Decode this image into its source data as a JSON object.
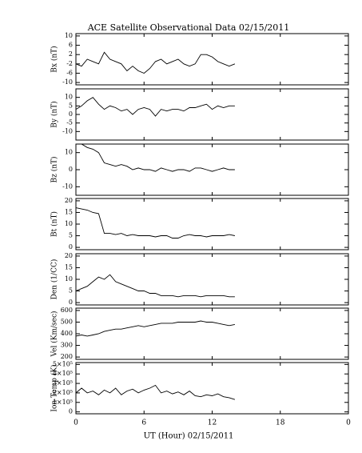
{
  "chart_data": [
    {
      "type": "line",
      "title": "ACE Satellite Observational Data   02/15/2011",
      "ylabel": "Bx (nT)",
      "x": [
        0,
        0.5,
        1,
        1.5,
        2,
        2.5,
        3,
        3.5,
        4,
        4.5,
        5,
        5.5,
        6,
        6.5,
        7,
        7.5,
        8,
        8.5,
        9,
        9.5,
        10,
        10.5,
        11,
        11.5,
        12,
        12.5,
        13,
        13.5,
        14
      ],
      "values": [
        -2,
        -3,
        0,
        -1,
        -2,
        3,
        0,
        -1,
        -2,
        -5,
        -3,
        -5,
        -6,
        -4,
        -1,
        0,
        -2,
        -1,
        0,
        -2,
        -3,
        -2,
        2,
        2,
        1,
        -1,
        -2,
        -3,
        -2
      ],
      "ylim": [
        -11,
        11
      ],
      "yticks": [
        -10,
        -6,
        -2,
        2,
        6,
        10
      ],
      "xlim": [
        0,
        24
      ],
      "color": "#000000"
    },
    {
      "type": "line",
      "ylabel": "By (nT)",
      "x": [
        0,
        0.5,
        1,
        1.5,
        2,
        2.5,
        3,
        3.5,
        4,
        4.5,
        5,
        5.5,
        6,
        6.5,
        7,
        7.5,
        8,
        8.5,
        9,
        9.5,
        10,
        10.5,
        11,
        11.5,
        12,
        12.5,
        13,
        13.5,
        14
      ],
      "values": [
        3,
        5,
        8,
        10,
        6,
        3,
        5,
        4,
        2,
        3,
        0,
        3,
        4,
        3,
        -1,
        3,
        2,
        3,
        3,
        2,
        4,
        4,
        5,
        6,
        3,
        5,
        4,
        5,
        5
      ],
      "ylim": [
        -15,
        15
      ],
      "yticks": [
        -10,
        -5,
        0,
        5,
        10
      ],
      "xlim": [
        0,
        24
      ],
      "color": "#000000"
    },
    {
      "type": "line",
      "ylabel": "Bz (nT)",
      "x": [
        0,
        0.5,
        1,
        1.5,
        2,
        2.5,
        3,
        3.5,
        4,
        4.5,
        5,
        5.5,
        6,
        6.5,
        7,
        7.5,
        8,
        8.5,
        9,
        9.5,
        10,
        10.5,
        11,
        11.5,
        12,
        12.5,
        13,
        13.5,
        14
      ],
      "values": [
        15,
        15,
        13,
        12,
        10,
        4,
        3,
        2,
        3,
        2,
        0,
        1,
        0,
        0,
        -1,
        1,
        0,
        -1,
        0,
        0,
        -1,
        1,
        1,
        0,
        -1,
        0,
        1,
        0,
        0
      ],
      "ylim": [
        -15,
        15
      ],
      "yticks": [
        -10,
        0,
        10
      ],
      "xlim": [
        0,
        24
      ],
      "color": "#000000"
    },
    {
      "type": "line",
      "ylabel": "Bt (nT)",
      "x": [
        0,
        0.5,
        1,
        1.5,
        2,
        2.5,
        3,
        3.5,
        4,
        4.5,
        5,
        5.5,
        6,
        6.5,
        7,
        7.5,
        8,
        8.5,
        9,
        9.5,
        10,
        10.5,
        11,
        11.5,
        12,
        12.5,
        13,
        13.5,
        14
      ],
      "values": [
        17,
        16.5,
        16,
        15,
        14.5,
        6,
        6,
        5.5,
        6,
        5,
        5.5,
        5,
        5,
        5,
        4.5,
        5,
        5,
        4,
        4,
        5,
        5.5,
        5,
        5,
        4.5,
        5,
        5,
        5,
        5.5,
        5
      ],
      "ylim": [
        -1,
        21
      ],
      "yticks": [
        0,
        5,
        10,
        15,
        20
      ],
      "xlim": [
        0,
        24
      ],
      "color": "#000000"
    },
    {
      "type": "line",
      "ylabel": "Den (1/CC)",
      "x": [
        0,
        0.5,
        1,
        1.5,
        2,
        2.5,
        3,
        3.5,
        4,
        4.5,
        5,
        5.5,
        6,
        6.5,
        7,
        7.5,
        8,
        8.5,
        9,
        9.5,
        10,
        10.5,
        11,
        11.5,
        12,
        12.5,
        13,
        13.5,
        14
      ],
      "values": [
        5,
        6,
        7,
        9,
        11,
        10,
        12,
        9,
        8,
        7,
        6,
        5,
        5,
        4,
        4,
        3,
        3,
        3,
        2.5,
        3,
        3,
        3,
        2.5,
        3,
        3,
        3,
        3,
        2.5,
        2.5
      ],
      "ylim": [
        -1,
        21
      ],
      "yticks": [
        0,
        5,
        10,
        15,
        20
      ],
      "xlim": [
        0,
        24
      ],
      "color": "#000000"
    },
    {
      "type": "line",
      "ylabel": "Vel (Km/sec)",
      "x": [
        0,
        0.5,
        1,
        1.5,
        2,
        2.5,
        3,
        3.5,
        4,
        4.5,
        5,
        5.5,
        6,
        6.5,
        7,
        7.5,
        8,
        8.5,
        9,
        9.5,
        10,
        10.5,
        11,
        11.5,
        12,
        12.5,
        13,
        13.5,
        14
      ],
      "values": [
        380,
        390,
        380,
        390,
        400,
        420,
        430,
        440,
        440,
        450,
        460,
        470,
        460,
        470,
        480,
        490,
        490,
        490,
        500,
        500,
        500,
        500,
        510,
        500,
        500,
        490,
        480,
        470,
        480
      ],
      "ylim": [
        180,
        620
      ],
      "yticks": [
        200,
        300,
        400,
        500,
        600
      ],
      "xlim": [
        0,
        24
      ],
      "color": "#000000"
    },
    {
      "type": "line",
      "ylabel": "Ion Temp (K)",
      "xlabel": "UT (Hour)  02/15/2011",
      "x": [
        0,
        0.5,
        1,
        1.5,
        2,
        2.5,
        3,
        3.5,
        4,
        4.5,
        5,
        5.5,
        6,
        6.5,
        7,
        7.5,
        8,
        8.5,
        9,
        9.5,
        10,
        10.5,
        11,
        11.5,
        12,
        12.5,
        13,
        13.5,
        14
      ],
      "values": [
        200000,
        250000,
        200000,
        220000,
        180000,
        230000,
        200000,
        250000,
        180000,
        220000,
        240000,
        200000,
        230000,
        250000,
        280000,
        200000,
        220000,
        190000,
        210000,
        180000,
        220000,
        170000,
        160000,
        180000,
        170000,
        190000,
        160000,
        150000,
        130000
      ],
      "ylim": [
        -20000,
        520000
      ],
      "yticks": [
        0,
        {
          "value": 100000,
          "label": "1×10⁵"
        },
        {
          "value": 200000,
          "label": "2×10⁵"
        },
        {
          "value": 300000,
          "label": "3×10⁵"
        },
        {
          "value": 400000,
          "label": "4×10⁵"
        },
        {
          "value": 500000,
          "label": "5×10⁵"
        }
      ],
      "xlim": [
        0,
        24
      ],
      "xticks": [
        0,
        6,
        12,
        18,
        {
          "value": 24,
          "label": "0"
        }
      ],
      "color": "#000000"
    }
  ]
}
